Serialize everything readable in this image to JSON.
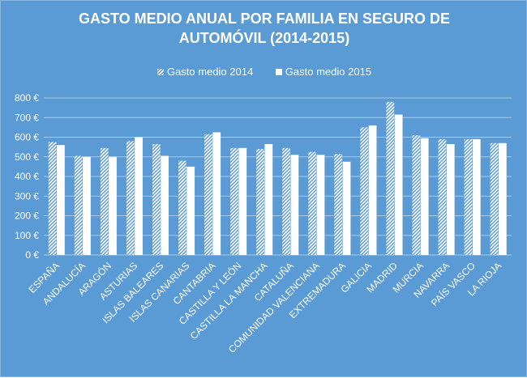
{
  "chart_data": {
    "type": "bar",
    "title": "GASTO MEDIO ANUAL POR FAMILIA EN SEGURO DE\nAUTOMÓVIL (2014-2015)",
    "categories": [
      "ESPAÑA",
      "ANDALUCÍA",
      "ARAGÓN",
      "ASTURIAS",
      "ISLAS BALEARES",
      "ISLAS CANARIAS",
      "CANTABRIA",
      "CASTILLA Y LEÓN",
      "CASTILLA LA MANCHA",
      "CATALUÑA",
      "COMUNIDAD VALENCIANA",
      "EXTREMADURA",
      "GALICIA",
      "MADRID",
      "MURCIA",
      "NAVARRA",
      "PAÍS VASCO",
      "LA RIOJA"
    ],
    "series": [
      {
        "name": "Gasto medio 2014",
        "values": [
          575,
          505,
          545,
          580,
          565,
          480,
          615,
          545,
          540,
          545,
          525,
          515,
          650,
          780,
          610,
          590,
          590,
          570
        ]
      },
      {
        "name": "Gasto medio 2015",
        "values": [
          560,
          500,
          500,
          600,
          505,
          450,
          625,
          545,
          565,
          510,
          510,
          475,
          660,
          715,
          595,
          565,
          590,
          570
        ]
      }
    ],
    "ylim": [
      0,
      800
    ],
    "yticks": [
      0,
      100,
      200,
      300,
      400,
      500,
      600,
      700,
      800
    ],
    "ytick_labels": [
      "0 €",
      "100 €",
      "200 €",
      "300 €",
      "400 €",
      "500 €",
      "600 €",
      "700 €",
      "800 €"
    ],
    "grid": true,
    "legend": "top"
  },
  "colors": {
    "background": "#5b9bd5",
    "bar": "#ffffff",
    "grid": "#a9c8e8"
  }
}
